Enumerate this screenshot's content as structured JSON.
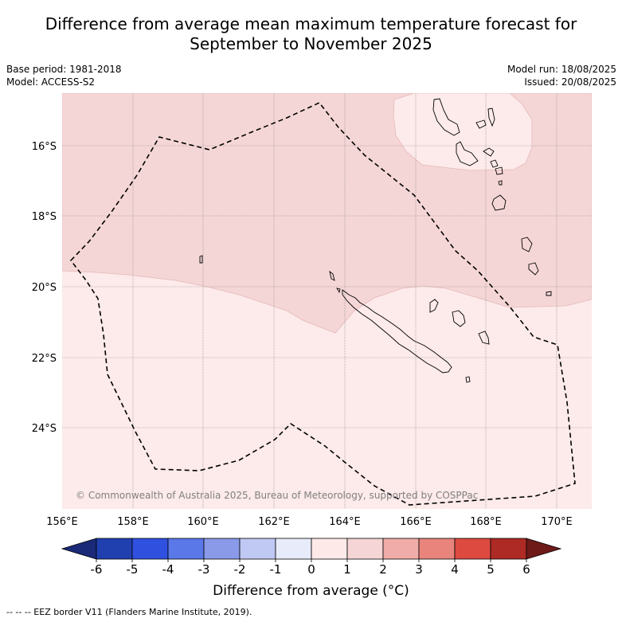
{
  "title_line1": "Difference from average mean maximum temperature forecast for",
  "title_line2": "September to November 2025",
  "meta_left": [
    "Base period: 1981-2018",
    "Model: ACCESS-S2"
  ],
  "meta_right": [
    "Model run: 18/08/2025",
    "Issued: 20/08/2025"
  ],
  "copyright": "© Commonwealth of Australia 2025, Bureau of Meteorology, supported by COSPPac",
  "lat_labels": [
    "16°S",
    "18°S",
    "20°S",
    "22°S",
    "24°S"
  ],
  "lon_labels": [
    "156°E",
    "158°E",
    "160°E",
    "162°E",
    "164°E",
    "166°E",
    "168°E",
    "170°E"
  ],
  "colorbar": {
    "ticks": [
      "-6",
      "-5",
      "-4",
      "-3",
      "-2",
      "-1",
      "0",
      "1",
      "2",
      "3",
      "4",
      "5",
      "6"
    ],
    "colors": [
      "#1a2a78",
      "#2040b0",
      "#3050e0",
      "#5a78e8",
      "#8a9ae8",
      "#c0c8f4",
      "#e8ecfa",
      "#fdeae8",
      "#f5d5d5",
      "#f0aca8",
      "#e8847c",
      "#dc4a40",
      "#ae2a24",
      "#6e1a18"
    ],
    "label": "Difference from average (°C)"
  },
  "legend_footer": "--  --  -- EEZ border V11 (Flanders Marine Institute, 2019).",
  "colors": {
    "anomaly_0_1": "#fdeaea",
    "anomaly_1_2": "#f5d6d6",
    "eez_border": "#000000",
    "gridline": "#888888"
  }
}
